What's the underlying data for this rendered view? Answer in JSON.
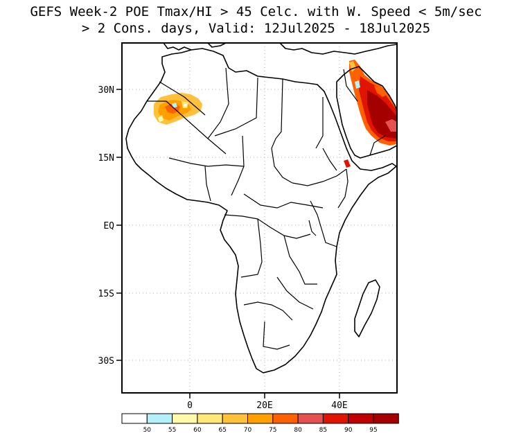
{
  "title": {
    "line1": "GEFS Week-2 POE Tmax/HI > 45 Celc. with W. Speed < 5m/sec",
    "line2": "> 2 Cons. days, Valid: 12Jul2025 - 18Jul2025"
  },
  "axes": {
    "lat_labels": [
      "30N",
      "15N",
      "EQ",
      "15S",
      "30S"
    ],
    "lon_labels": [
      "0",
      "20E",
      "40E"
    ]
  },
  "colorbar": {
    "labels": [
      "50",
      "55",
      "60",
      "65",
      "70",
      "75",
      "80",
      "85",
      "90",
      "95"
    ],
    "colors": [
      "#ffffff",
      "#b4f0fa",
      "#fffaaa",
      "#ffe878",
      "#ffc03c",
      "#ffa000",
      "#ff6000",
      "#e55050",
      "#e11400",
      "#c00000",
      "#a50000"
    ]
  },
  "map_colors": {
    "land_outline": "#000000",
    "grid": "#b0b0b0"
  }
}
